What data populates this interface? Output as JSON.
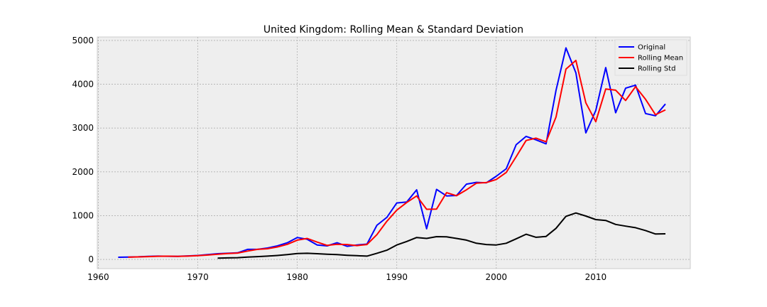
{
  "chart_data": {
    "type": "line",
    "title": "United Kingdom: Rolling Mean & Standard Deviation",
    "xlabel": "",
    "ylabel": "",
    "xlim": [
      1959.9,
      2019.5
    ],
    "ylim": [
      -210,
      5080
    ],
    "x_ticks": [
      1960,
      1970,
      1980,
      1990,
      2000,
      2010
    ],
    "y_ticks": [
      0,
      1000,
      2000,
      3000,
      4000,
      5000
    ],
    "grid": true,
    "legend_position": "upper-right",
    "series": [
      {
        "name": "Original",
        "color": "#0000ff",
        "x": [
          1962,
          1963,
          1964,
          1965,
          1966,
          1967,
          1968,
          1969,
          1970,
          1971,
          1972,
          1973,
          1974,
          1975,
          1976,
          1977,
          1978,
          1979,
          1980,
          1981,
          1982,
          1983,
          1984,
          1985,
          1986,
          1987,
          1988,
          1989,
          1990,
          1991,
          1992,
          1993,
          1994,
          1995,
          1996,
          1997,
          1998,
          1999,
          2000,
          2001,
          2002,
          2003,
          2004,
          2005,
          2006,
          2007,
          2008,
          2009,
          2010,
          2011,
          2012,
          2013,
          2014,
          2015,
          2016,
          2017
        ],
        "y": [
          50,
          55,
          60,
          70,
          75,
          72,
          70,
          80,
          90,
          110,
          130,
          140,
          150,
          230,
          230,
          260,
          310,
          380,
          500,
          460,
          330,
          310,
          380,
          300,
          330,
          350,
          780,
          960,
          1290,
          1310,
          1590,
          700,
          1600,
          1450,
          1460,
          1720,
          1760,
          1750,
          1900,
          2070,
          2620,
          2810,
          2730,
          2640,
          3860,
          4830,
          4260,
          2890,
          3400,
          4380,
          3350,
          3910,
          3980,
          3330,
          3280,
          3550
        ]
      },
      {
        "name": "Rolling Mean",
        "color": "#ff0000",
        "x": [
          1963,
          1964,
          1965,
          1966,
          1967,
          1968,
          1969,
          1970,
          1971,
          1972,
          1973,
          1974,
          1975,
          1976,
          1977,
          1978,
          1979,
          1980,
          1981,
          1982,
          1983,
          1984,
          1985,
          1986,
          1987,
          1988,
          1989,
          1990,
          1991,
          1992,
          1993,
          1994,
          1995,
          1996,
          1997,
          1998,
          1999,
          2000,
          2001,
          2002,
          2003,
          2004,
          2005,
          2006,
          2007,
          2008,
          2009,
          2010,
          2011,
          2012,
          2013,
          2014,
          2015,
          2016,
          2017
        ],
        "y": [
          52,
          58,
          65,
          72,
          74,
          71,
          75,
          85,
          100,
          120,
          135,
          145,
          190,
          230,
          245,
          285,
          345,
          440,
          480,
          395,
          320,
          345,
          340,
          315,
          340,
          565,
          870,
          1125,
          1300,
          1450,
          1145,
          1150,
          1525,
          1455,
          1590,
          1740,
          1755,
          1825,
          1985,
          2345,
          2715,
          2770,
          2685,
          3250,
          4345,
          4545,
          3575,
          3145,
          3890,
          3865,
          3630,
          3945,
          3655,
          3305,
          3415
        ]
      },
      {
        "name": "Rolling Std",
        "color": "#000000",
        "x": [
          1972,
          1973,
          1974,
          1975,
          1976,
          1977,
          1978,
          1979,
          1980,
          1981,
          1982,
          1983,
          1984,
          1985,
          1986,
          1987,
          1988,
          1989,
          1990,
          1991,
          1992,
          1993,
          1994,
          1995,
          1996,
          1997,
          1998,
          1999,
          2000,
          2001,
          2002,
          2003,
          2004,
          2005,
          2006,
          2007,
          2008,
          2009,
          2010,
          2011,
          2012,
          2013,
          2014,
          2015,
          2016,
          2017
        ],
        "y": [
          30,
          35,
          40,
          55,
          65,
          75,
          90,
          110,
          135,
          140,
          130,
          120,
          110,
          95,
          85,
          75,
          140,
          210,
          330,
          410,
          500,
          480,
          520,
          515,
          480,
          440,
          370,
          340,
          330,
          370,
          470,
          575,
          505,
          525,
          710,
          985,
          1060,
          990,
          910,
          890,
          800,
          760,
          725,
          660,
          580,
          585
        ]
      }
    ]
  }
}
